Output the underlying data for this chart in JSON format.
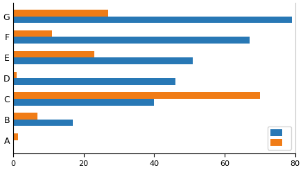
{
  "categories": [
    "A",
    "B",
    "C",
    "D",
    "E",
    "F",
    "G"
  ],
  "blue_values": [
    0,
    17,
    40,
    46,
    51,
    67,
    79
  ],
  "orange_values": [
    1.5,
    7,
    70,
    1,
    23,
    11,
    27
  ],
  "blue_color": "#2878b5",
  "orange_color": "#f07c16",
  "xlim": [
    0,
    80
  ],
  "xticks": [
    0,
    20,
    40,
    60,
    80
  ],
  "background_color": "#ffffff",
  "legend_label_blue": "",
  "legend_label_orange": "",
  "bar_height": 0.32,
  "figsize": [
    4.37,
    2.46
  ],
  "dpi": 100
}
